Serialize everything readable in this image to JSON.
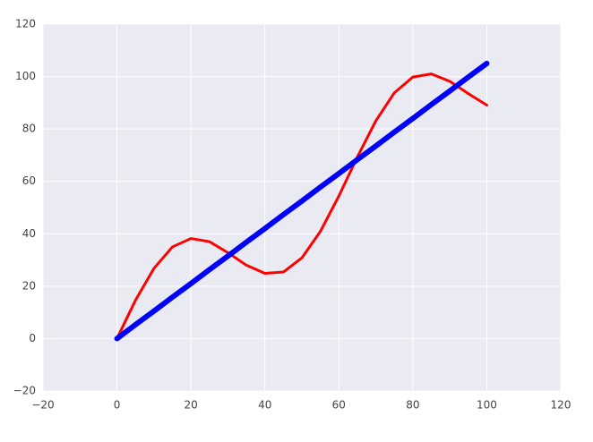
{
  "chart_data": {
    "type": "line",
    "x": [
      0,
      5,
      10,
      15,
      20,
      25,
      30,
      35,
      40,
      45,
      50,
      55,
      60,
      65,
      70,
      75,
      80,
      85,
      90,
      95,
      100
    ],
    "series": [
      {
        "color": "#ff0000",
        "width": 3,
        "values": [
          0,
          14.6,
          26.8,
          35.0,
          38.2,
          37.0,
          32.8,
          28.0,
          24.9,
          25.4,
          30.8,
          40.9,
          54.4,
          69.3,
          83.1,
          93.8,
          99.8,
          101.0,
          98.2,
          93.5,
          89.1
        ]
      },
      {
        "color": "#0000ff",
        "width": 6,
        "values": [
          0,
          5.3,
          10.5,
          15.8,
          21,
          26.3,
          31.5,
          36.8,
          42,
          47.3,
          52.5,
          57.8,
          63,
          68.3,
          73.5,
          78.8,
          84,
          89.3,
          94.5,
          99.8,
          105
        ]
      }
    ],
    "xlim": [
      -20,
      120
    ],
    "xticks": [
      {
        "value": -20,
        "label": "−20"
      },
      0,
      20,
      40,
      60,
      80,
      100,
      120
    ],
    "ylim": [
      -20,
      120
    ],
    "yticks": [
      {
        "value": -20,
        "label": "−20"
      },
      0,
      20,
      40,
      60,
      80,
      100,
      120
    ],
    "grid": true
  }
}
